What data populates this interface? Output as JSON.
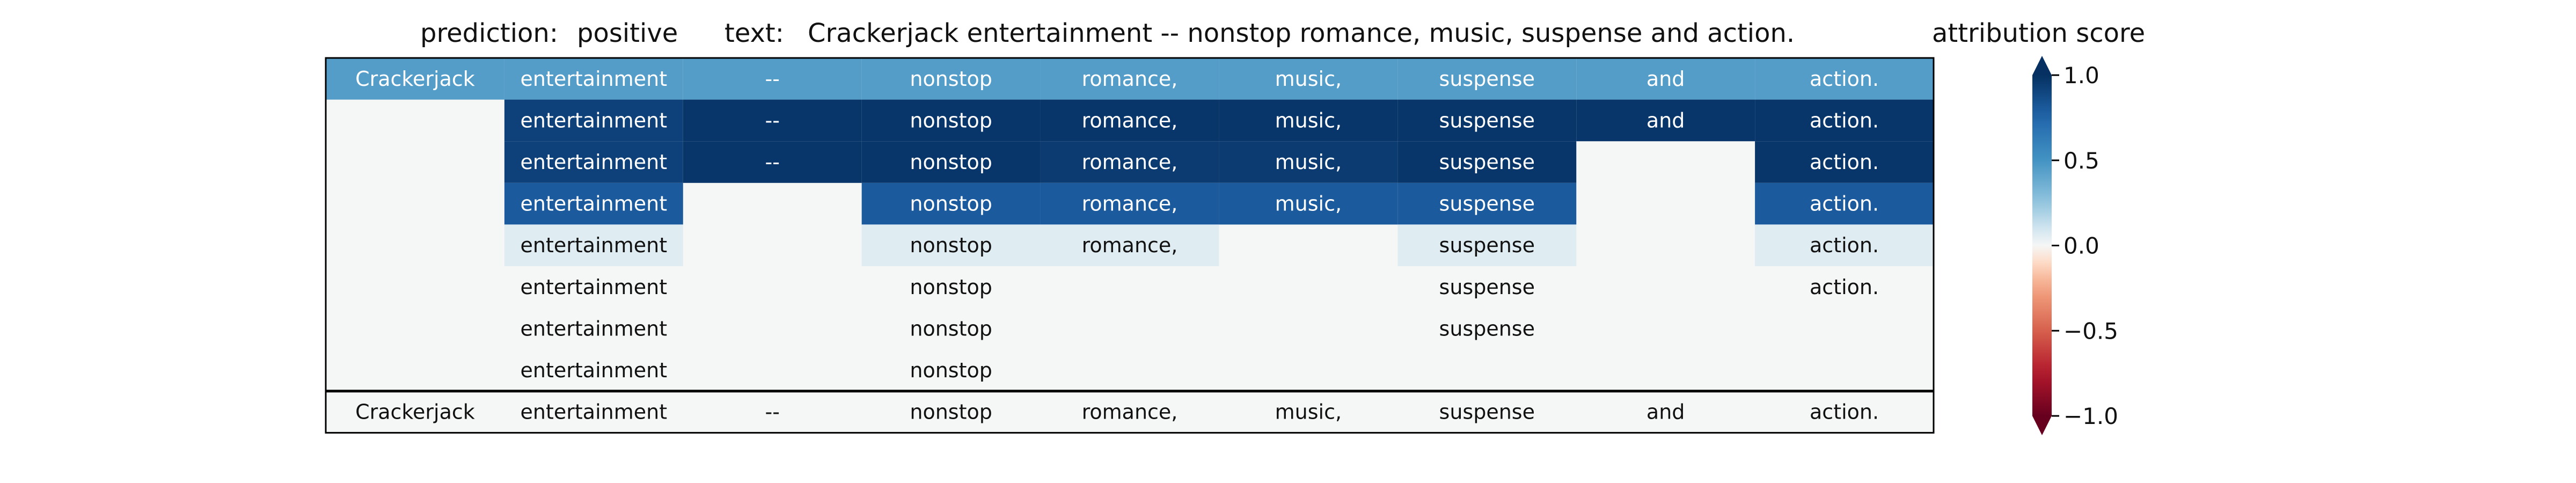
{
  "header": {
    "prediction_label": "prediction:",
    "prediction_value": "positive",
    "text_label": "text:",
    "text_value": "Crackerjack entertainment -- nonstop romance, music, suspense and action.",
    "colorbar_title": "attribution score"
  },
  "colorbar": {
    "ticks": [
      "1.0",
      "0.5",
      "0.0",
      "−0.5",
      "−1.0"
    ],
    "tick_values": [
      1.0,
      0.5,
      0.0,
      -0.5,
      -1.0
    ],
    "range": [
      -1.0,
      1.0
    ],
    "colormap": "RdBu",
    "extend": "both"
  },
  "chart_data": {
    "type": "heatmap",
    "tokens": [
      "Crackerjack",
      "entertainment",
      "--",
      "nonstop",
      "romance,",
      "music,",
      "suspense",
      "and",
      "action."
    ],
    "rows": [
      [
        0.45,
        0.45,
        0.45,
        0.45,
        0.45,
        0.45,
        0.45,
        0.45,
        0.45
      ],
      [
        null,
        0.92,
        0.97,
        0.97,
        0.97,
        0.97,
        0.97,
        0.97,
        0.97
      ],
      [
        null,
        0.92,
        0.97,
        0.97,
        0.95,
        0.95,
        0.97,
        null,
        0.97
      ],
      [
        null,
        0.8,
        null,
        0.8,
        0.8,
        0.8,
        0.8,
        null,
        0.8
      ],
      [
        null,
        0.06,
        null,
        0.06,
        0.06,
        null,
        0.06,
        null,
        0.06
      ],
      [
        null,
        0.0,
        null,
        0.0,
        null,
        null,
        0.0,
        null,
        0.0
      ],
      [
        null,
        0.0,
        null,
        0.0,
        null,
        null,
        0.0,
        null,
        null
      ],
      [
        null,
        0.0,
        null,
        0.0,
        null,
        null,
        null,
        null,
        null
      ]
    ],
    "bottom_row": [
      "Crackerjack",
      "entertainment",
      "--",
      "nonstop",
      "romance,",
      "music,",
      "suspense",
      "and",
      "action."
    ]
  }
}
